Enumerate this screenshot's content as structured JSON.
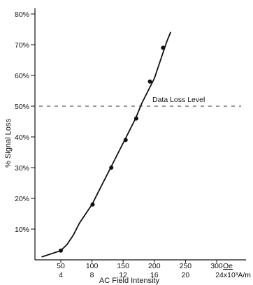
{
  "chart_data": {
    "type": "line",
    "xlabel": "AC Field Intensity",
    "ylabel": "% Signal Loss",
    "xlim": [
      0,
      330
    ],
    "ylim": [
      0,
      80
    ],
    "grid": false,
    "x_ticks_oe": [
      {
        "value": 50,
        "label": "50"
      },
      {
        "value": 100,
        "label": "100"
      },
      {
        "value": 150,
        "label": "150"
      },
      {
        "value": 200,
        "label": "200"
      },
      {
        "value": 250,
        "label": "250"
      },
      {
        "value": 300,
        "label": "300"
      }
    ],
    "x_unit_oe": "Oe",
    "x_ticks_am": [
      {
        "value": 50,
        "label": "4"
      },
      {
        "value": 100,
        "label": "8"
      },
      {
        "value": 150,
        "label": "12"
      },
      {
        "value": 200,
        "label": "16"
      },
      {
        "value": 250,
        "label": "20"
      }
    ],
    "x_unit_am": "24x10³A/m",
    "y_ticks": [
      {
        "value": 10,
        "label": "10%"
      },
      {
        "value": 20,
        "label": "20%"
      },
      {
        "value": 30,
        "label": "30%"
      },
      {
        "value": 40,
        "label": "40%"
      },
      {
        "value": 50,
        "label": "50%"
      },
      {
        "value": 60,
        "label": "60%"
      },
      {
        "value": 70,
        "label": "70%"
      },
      {
        "value": 80,
        "label": "80%"
      }
    ],
    "reference_line": {
      "y": 50,
      "label": "Data Loss Level",
      "style": "dashed"
    },
    "series": [
      {
        "curve": [
          [
            20,
            1
          ],
          [
            50,
            3
          ],
          [
            60,
            5
          ],
          [
            70,
            8
          ],
          [
            80,
            12
          ],
          [
            90,
            15
          ],
          [
            100,
            18
          ],
          [
            110,
            22
          ],
          [
            120,
            26
          ],
          [
            130,
            30
          ],
          [
            140,
            34
          ],
          [
            150,
            38
          ],
          [
            155,
            40
          ],
          [
            160,
            42
          ],
          [
            165,
            44
          ],
          [
            170,
            46
          ],
          [
            180,
            51
          ],
          [
            190,
            55
          ],
          [
            200,
            59
          ],
          [
            210,
            65
          ],
          [
            220,
            71
          ],
          [
            226,
            74
          ]
        ],
        "markers": [
          [
            50,
            3
          ],
          [
            101,
            18
          ],
          [
            131,
            30
          ],
          [
            154,
            39
          ],
          [
            171,
            46
          ],
          [
            193,
            58
          ],
          [
            214,
            69
          ]
        ]
      }
    ]
  }
}
